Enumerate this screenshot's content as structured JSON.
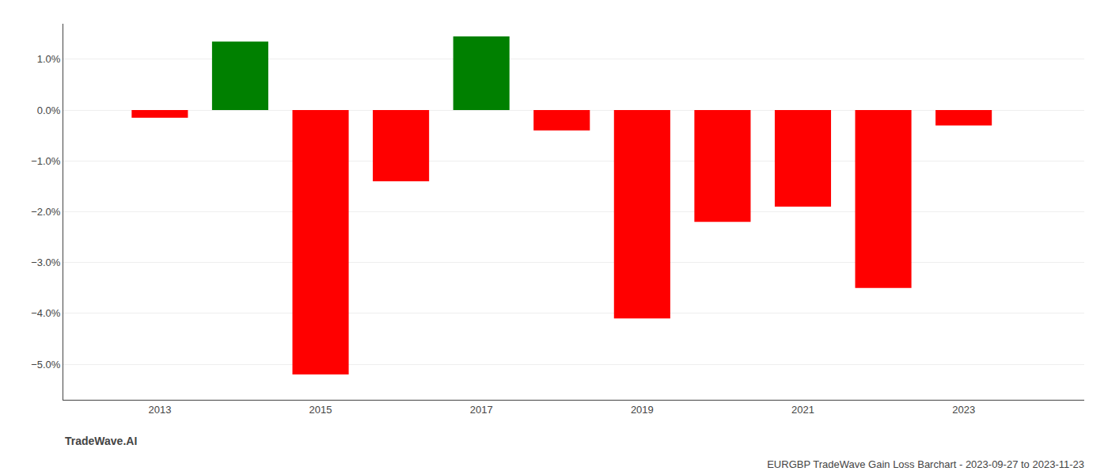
{
  "chart_data": {
    "type": "bar",
    "title": "EURGBP TradeWave Gain Loss Barchart - 2023-09-27 to 2023-11-23",
    "annotations": [
      "TradeWave.AI"
    ],
    "x": [
      2013,
      2014,
      2015,
      2016,
      2017,
      2018,
      2019,
      2020,
      2021,
      2022,
      2023
    ],
    "values": [
      -0.0015,
      0.0135,
      -0.052,
      -0.014,
      0.0145,
      -0.004,
      -0.041,
      -0.022,
      -0.019,
      -0.035,
      -0.003
    ],
    "colors": [
      "#ff0000",
      "#008000",
      "#ff0000",
      "#ff0000",
      "#008000",
      "#ff0000",
      "#ff0000",
      "#ff0000",
      "#ff0000",
      "#ff0000",
      "#ff0000"
    ],
    "xlim": [
      2011.8,
      2024.5
    ],
    "xticks": [
      2013,
      2015,
      2017,
      2019,
      2021,
      2023
    ],
    "ylim": [
      -0.057,
      0.017
    ],
    "yticks": [
      {
        "value": 0.01,
        "label": "1.0%"
      },
      {
        "value": 0.0,
        "label": "0.0%"
      },
      {
        "value": -0.01,
        "label": "−1.0%"
      },
      {
        "value": -0.02,
        "label": "−2.0%"
      },
      {
        "value": -0.03,
        "label": "−3.0%"
      },
      {
        "value": -0.04,
        "label": "−4.0%"
      },
      {
        "value": -0.05,
        "label": "−5.0%"
      }
    ],
    "grid": "y"
  }
}
